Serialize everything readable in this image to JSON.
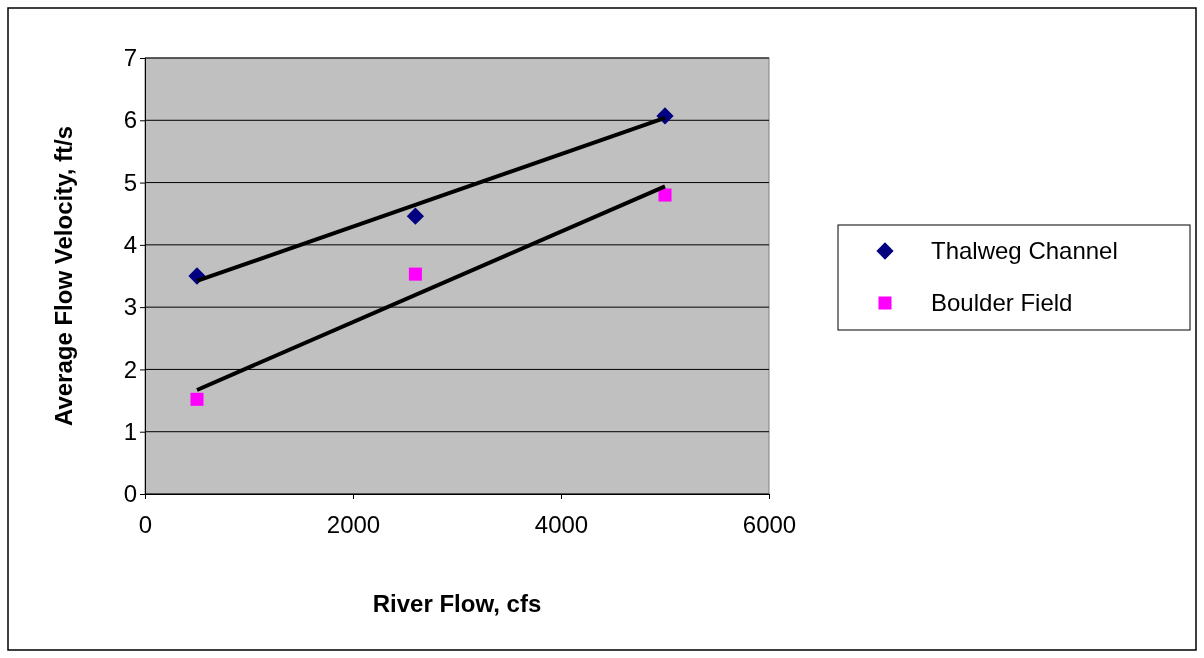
{
  "chart_data": {
    "type": "scatter",
    "xlabel": "River Flow, cfs",
    "ylabel": "Average Flow Velocity, ft/s",
    "xlim": [
      0,
      6000
    ],
    "xticks": [
      0,
      2000,
      4000,
      6000
    ],
    "ylim": [
      0,
      7
    ],
    "yticks": [
      0,
      1,
      2,
      3,
      4,
      5,
      6,
      7
    ],
    "grid": "y",
    "legend": "right",
    "series": [
      {
        "name": "Thalweg Channel",
        "color": "#000080",
        "marker": "diamond",
        "x": [
          500,
          2600,
          5000
        ],
        "values": [
          3.5,
          4.46,
          6.07
        ]
      },
      {
        "name": "Boulder Field",
        "color": "#ff00ff",
        "marker": "square",
        "x": [
          500,
          2600,
          5000
        ],
        "values": [
          1.52,
          3.53,
          4.8
        ]
      },
      {
        "type": "line",
        "color": "#000000",
        "marker": "none",
        "x": [
          500,
          5000
        ],
        "values": [
          3.42,
          6.04
        ]
      },
      {
        "type": "line",
        "color": "#000000",
        "marker": "none",
        "x": [
          500,
          5000
        ],
        "values": [
          1.67,
          4.94
        ]
      }
    ]
  }
}
